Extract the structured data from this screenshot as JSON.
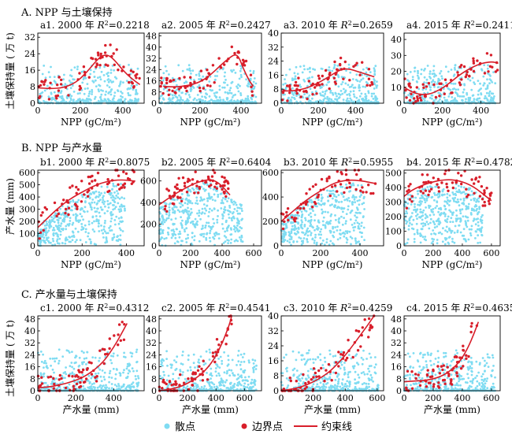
{
  "sections": [
    {
      "title": "A. NPP 与土壤保持",
      "ylabel": "土壤保持量 ( 万 t)"
    },
    {
      "title": "B. NPP 与产水量",
      "ylabel": "产水量 (mm)"
    },
    {
      "title": "C. 产水量与土壤保持",
      "ylabel": "土壤保持量 ( 万 t)"
    }
  ],
  "legend": {
    "scatter": "散点",
    "boundary": "边界点",
    "curve": "约束线"
  },
  "colors": {
    "scatter": "#7fdcf2",
    "boundary": "#d81e2a",
    "curve": "#d81e2a"
  },
  "chart_data": [
    {
      "id": "a1",
      "type": "scatter",
      "title_prefix": "a1. 2000 年",
      "r2": "=0.2218",
      "xlabel": "NPP (gC/m²)",
      "ylabel": "土壤保持量 ( 万 t)",
      "xlim": [
        0,
        500
      ],
      "ylim": [
        0,
        34
      ],
      "xticks": [
        0,
        200,
        400
      ],
      "yticks": [
        0,
        8,
        16,
        24,
        32
      ],
      "curve": [
        [
          0,
          7.5
        ],
        [
          60,
          7
        ],
        [
          120,
          7.5
        ],
        [
          180,
          10
        ],
        [
          230,
          15
        ],
        [
          270,
          20
        ],
        [
          300,
          23
        ],
        [
          330,
          23.5
        ],
        [
          360,
          21
        ],
        [
          400,
          16
        ],
        [
          440,
          12
        ],
        [
          480,
          9
        ]
      ]
    },
    {
      "id": "a2",
      "type": "scatter",
      "title_prefix": "a2. 2005 年",
      "r2": "=0.2427",
      "xlabel": "NPP (gC/m²)",
      "ylabel": "土壤保持量 ( 万 t)",
      "xlim": [
        0,
        500
      ],
      "ylim": [
        0,
        50
      ],
      "xticks": [
        0,
        200,
        400
      ],
      "yticks": [
        0,
        8,
        16,
        24,
        32,
        40,
        48
      ],
      "curve": [
        [
          20,
          12
        ],
        [
          80,
          11.5
        ],
        [
          140,
          12.5
        ],
        [
          200,
          15
        ],
        [
          250,
          20
        ],
        [
          300,
          27
        ],
        [
          340,
          32
        ],
        [
          370,
          35
        ],
        [
          390,
          33
        ],
        [
          410,
          25
        ],
        [
          440,
          16
        ],
        [
          460,
          12
        ]
      ]
    },
    {
      "id": "a3",
      "type": "scatter",
      "title_prefix": "a3. 2010 年",
      "r2": "=0.2659",
      "xlabel": "NPP (gC/m²)",
      "ylabel": "土壤保持量 ( 万 t)",
      "xlim": [
        0,
        550
      ],
      "ylim": [
        0,
        40
      ],
      "xticks": [
        0,
        200,
        400
      ],
      "yticks": [
        0,
        8,
        16,
        24,
        32,
        40
      ],
      "curve": [
        [
          0,
          7
        ],
        [
          60,
          7
        ],
        [
          120,
          8
        ],
        [
          180,
          10.5
        ],
        [
          240,
          14
        ],
        [
          290,
          17.5
        ],
        [
          330,
          19.5
        ],
        [
          370,
          19.5
        ],
        [
          410,
          18
        ],
        [
          460,
          16.5
        ],
        [
          500,
          15
        ]
      ]
    },
    {
      "id": "a4",
      "type": "scatter",
      "title_prefix": "a4. 2015 年",
      "r2": "=0.2411",
      "xlabel": "NPP (gC/m²)",
      "ylabel": "土壤保持量 ( 万 t)",
      "xlim": [
        0,
        500
      ],
      "ylim": [
        0,
        44
      ],
      "xticks": [
        0,
        200,
        400
      ],
      "yticks": [
        0,
        10,
        20,
        30,
        40
      ],
      "curve": [
        [
          0,
          10
        ],
        [
          40,
          7
        ],
        [
          80,
          5.5
        ],
        [
          130,
          5.5
        ],
        [
          180,
          8
        ],
        [
          230,
          12
        ],
        [
          280,
          17
        ],
        [
          330,
          21
        ],
        [
          380,
          24
        ],
        [
          420,
          25.5
        ],
        [
          460,
          26
        ],
        [
          490,
          25
        ]
      ]
    },
    {
      "id": "b1",
      "type": "scatter",
      "title_prefix": "b1. 2000 年",
      "r2": "=0.8075",
      "xlabel": "NPP (gC/m²)",
      "ylabel": "产水量 (mm)",
      "xlim": [
        0,
        480
      ],
      "ylim": [
        0,
        620
      ],
      "xticks": [
        0,
        200,
        400
      ],
      "yticks": [
        0,
        100,
        200,
        300,
        400,
        500,
        600
      ],
      "curve": [
        [
          0,
          150
        ],
        [
          40,
          220
        ],
        [
          80,
          290
        ],
        [
          120,
          350
        ],
        [
          160,
          400
        ],
        [
          200,
          440
        ],
        [
          240,
          480
        ],
        [
          280,
          510
        ],
        [
          320,
          530
        ],
        [
          360,
          540
        ],
        [
          400,
          538
        ],
        [
          440,
          530
        ]
      ]
    },
    {
      "id": "b2",
      "type": "scatter",
      "title_prefix": "b2. 2005 年",
      "r2": "=0.6404",
      "xlabel": "NPP (gC/m²)",
      "ylabel": "产水量 (mm)",
      "xlim": [
        0,
        650
      ],
      "ylim": [
        0,
        700
      ],
      "xticks": [
        0,
        200,
        400,
        600
      ],
      "yticks": [
        0,
        200,
        400,
        600
      ],
      "curve": [
        [
          0,
          380
        ],
        [
          50,
          430
        ],
        [
          100,
          480
        ],
        [
          150,
          520
        ],
        [
          200,
          560
        ],
        [
          250,
          590
        ],
        [
          300,
          610
        ],
        [
          340,
          610
        ],
        [
          380,
          580
        ],
        [
          420,
          520
        ],
        [
          450,
          470
        ]
      ]
    },
    {
      "id": "b3",
      "type": "scatter",
      "title_prefix": "b3. 2010 年",
      "r2": "=0.5955",
      "xlabel": "NPP (gC/m²)",
      "ylabel": "产水量 (mm)",
      "xlim": [
        0,
        520
      ],
      "ylim": [
        0,
        620
      ],
      "xticks": [
        0,
        200,
        400
      ],
      "yticks": [
        0,
        200,
        400,
        600
      ],
      "curve": [
        [
          0,
          200
        ],
        [
          50,
          270
        ],
        [
          100,
          340
        ],
        [
          150,
          400
        ],
        [
          200,
          450
        ],
        [
          250,
          500
        ],
        [
          300,
          530
        ],
        [
          350,
          540
        ],
        [
          400,
          535
        ],
        [
          450,
          520
        ],
        [
          480,
          510
        ]
      ]
    },
    {
      "id": "b4",
      "type": "scatter",
      "title_prefix": "b4. 2015 年",
      "r2": "=0.4782",
      "xlabel": "NPP (gC/m²)",
      "ylabel": "产水量 (mm)",
      "xlim": [
        0,
        660
      ],
      "ylim": [
        0,
        520
      ],
      "xticks": [
        0,
        200,
        400,
        600
      ],
      "yticks": [
        0,
        100,
        200,
        300,
        400,
        500
      ],
      "curve": [
        [
          0,
          340
        ],
        [
          50,
          380
        ],
        [
          100,
          405
        ],
        [
          150,
          425
        ],
        [
          200,
          440
        ],
        [
          250,
          450
        ],
        [
          300,
          455
        ],
        [
          350,
          452
        ],
        [
          400,
          440
        ],
        [
          450,
          420
        ],
        [
          500,
          390
        ],
        [
          550,
          350
        ],
        [
          600,
          310
        ]
      ]
    },
    {
      "id": "c1",
      "type": "scatter",
      "title_prefix": "c1. 2000 年",
      "r2": "=0.4312",
      "xlabel": "产水量 (mm)",
      "ylabel": "土壤保持量 ( 万 t)",
      "xlim": [
        0,
        560
      ],
      "ylim": [
        0,
        50
      ],
      "xticks": [
        0,
        200,
        400
      ],
      "yticks": [
        0,
        8,
        16,
        24,
        32,
        40,
        48
      ],
      "curve": [
        [
          0,
          2
        ],
        [
          60,
          2.5
        ],
        [
          120,
          4
        ],
        [
          180,
          6
        ],
        [
          240,
          9
        ],
        [
          300,
          14
        ],
        [
          350,
          20
        ],
        [
          400,
          29
        ],
        [
          440,
          38
        ],
        [
          470,
          45
        ]
      ]
    },
    {
      "id": "c2",
      "type": "scatter",
      "title_prefix": "c2. 2005 年",
      "r2": "=0.4541",
      "xlabel": "产水量 (mm)",
      "ylabel": "土壤保持量 ( 万 t)",
      "xlim": [
        0,
        720
      ],
      "ylim": [
        0,
        50
      ],
      "xticks": [
        0,
        200,
        400,
        600
      ],
      "yticks": [
        0,
        8,
        16,
        24,
        32,
        40,
        48
      ],
      "curve": [
        [
          0,
          0
        ],
        [
          80,
          1
        ],
        [
          160,
          3
        ],
        [
          240,
          7
        ],
        [
          320,
          13
        ],
        [
          380,
          20
        ],
        [
          430,
          29
        ],
        [
          470,
          38
        ],
        [
          500,
          46
        ],
        [
          510,
          50
        ]
      ]
    },
    {
      "id": "c3",
      "type": "scatter",
      "title_prefix": "c3. 2010 年",
      "r2": "=0.4259",
      "xlabel": "产水量 (mm)",
      "ylabel": "土壤保持量 ( 万 t)",
      "xlim": [
        0,
        640
      ],
      "ylim": [
        0,
        40
      ],
      "xticks": [
        0,
        200,
        400,
        600
      ],
      "yticks": [
        0,
        8,
        16,
        24,
        32,
        40
      ],
      "curve": [
        [
          0,
          0
        ],
        [
          80,
          1
        ],
        [
          160,
          3
        ],
        [
          240,
          6.5
        ],
        [
          300,
          10
        ],
        [
          360,
          15
        ],
        [
          420,
          21
        ],
        [
          480,
          28
        ],
        [
          540,
          35
        ],
        [
          580,
          40
        ]
      ]
    },
    {
      "id": "c4",
      "type": "scatter",
      "title_prefix": "c4. 2015 年",
      "r2": "=0.4635",
      "xlabel": "产水量 (mm)",
      "ylabel": "土壤保持量 ( 万 t)",
      "xlim": [
        0,
        660
      ],
      "ylim": [
        0,
        50
      ],
      "xticks": [
        0,
        200,
        400,
        600
      ],
      "yticks": [
        0,
        8,
        16,
        24,
        32,
        40,
        48
      ],
      "curve": [
        [
          0,
          6
        ],
        [
          80,
          6.5
        ],
        [
          160,
          7
        ],
        [
          240,
          9
        ],
        [
          300,
          12
        ],
        [
          360,
          17
        ],
        [
          400,
          22
        ],
        [
          440,
          29
        ],
        [
          480,
          38
        ],
        [
          510,
          46
        ]
      ]
    }
  ]
}
